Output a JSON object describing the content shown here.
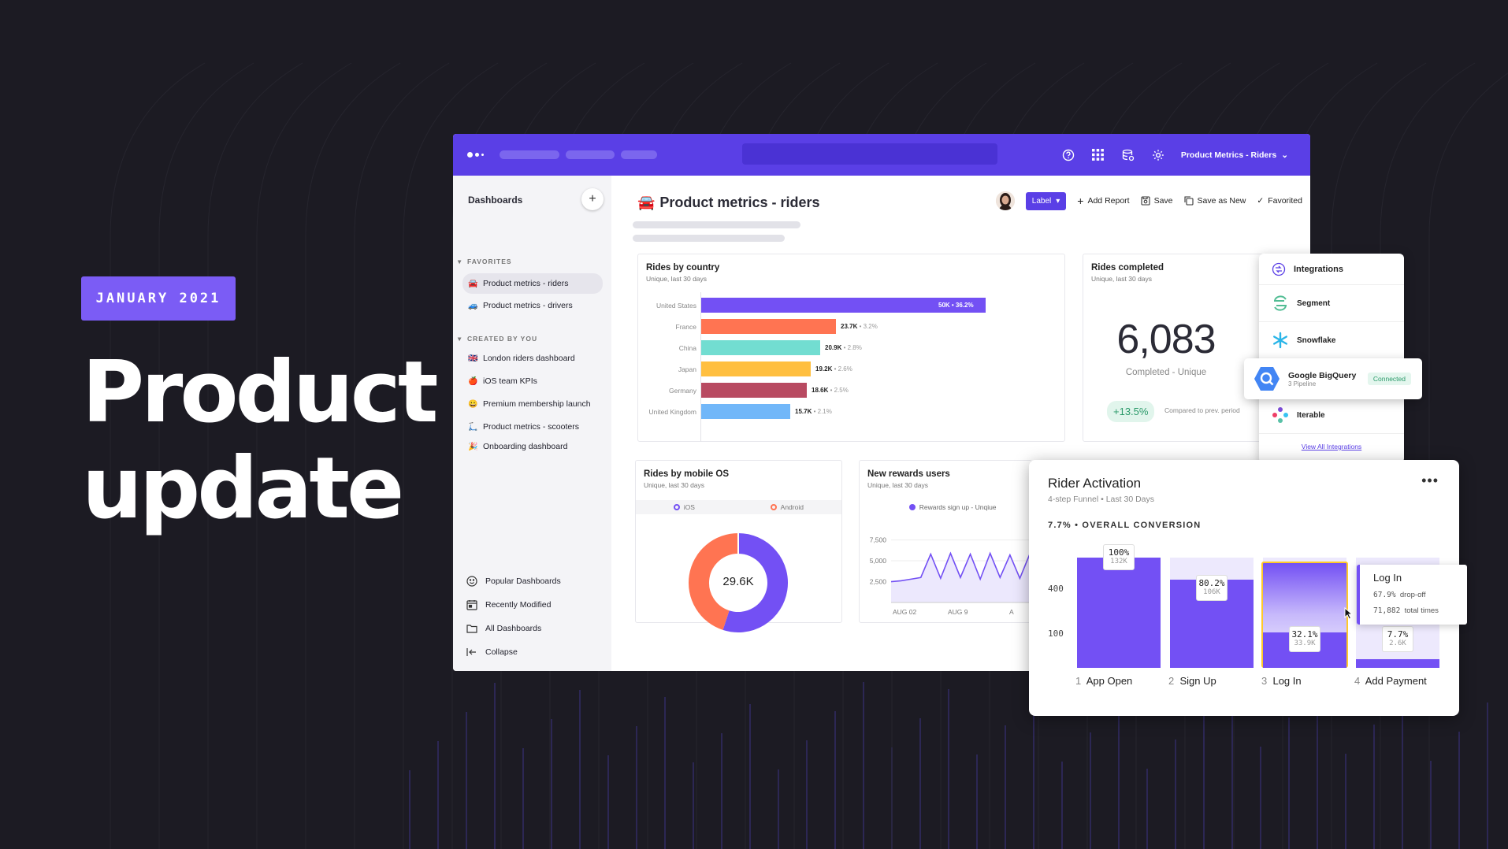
{
  "hero": {
    "date_badge": "JANUARY 2021",
    "title_line1": "Product",
    "title_line2": "update"
  },
  "topbar": {
    "project": "Product Metrics - Riders",
    "icons": [
      "help-icon",
      "apps-grid-icon",
      "data-icon",
      "settings-icon"
    ]
  },
  "sidebar": {
    "title": "Dashboards",
    "favorites_label": "FAVORITES",
    "favorites": [
      {
        "emoji": "🚘",
        "label": "Product metrics - riders"
      },
      {
        "emoji": "🚙",
        "label": "Product metrics - drivers"
      }
    ],
    "created_label": "CREATED BY YOU",
    "created": [
      {
        "emoji": "🇬🇧",
        "label": "London riders dashboard"
      },
      {
        "emoji": "🍎",
        "label": "iOS team KPIs"
      },
      {
        "emoji": "😀",
        "label": "Premium membership launch"
      },
      {
        "emoji": "🛴",
        "label": "Product metrics - scooters"
      },
      {
        "emoji": "🎉",
        "label": "Onboarding dashboard"
      }
    ],
    "footer": [
      "Popular Dashboards",
      "Recently Modified",
      "All Dashboards",
      "Collapse"
    ]
  },
  "page": {
    "emoji": "🚘",
    "title": "Product metrics - riders",
    "label_btn": "Label",
    "add_report": "Add Report",
    "save": "Save",
    "save_as_new": "Save as New",
    "favorited": "Favorited"
  },
  "rides_by_country": {
    "title": "Rides by country",
    "subtitle": "Unique, last 30 days",
    "chart_data": {
      "type": "bar",
      "orientation": "horizontal",
      "categories": [
        "United States",
        "France",
        "China",
        "Japan",
        "Germany",
        "United Kingdom"
      ],
      "values": [
        50000,
        23700,
        20900,
        19200,
        18600,
        15700
      ],
      "value_labels": [
        "50K",
        "23.7K",
        "20.9K",
        "19.2K",
        "18.6K",
        "15.7K"
      ],
      "percent_labels": [
        "36.2%",
        "3.2%",
        "2.8%",
        "2.6%",
        "2.5%",
        "2.1%"
      ],
      "colors": [
        "#7350f4",
        "#ff7452",
        "#72ddd1",
        "#ffbf3f",
        "#b84a61",
        "#71b7f9"
      ]
    }
  },
  "rides_completed": {
    "title": "Rides completed",
    "subtitle": "Unique, last 30 days",
    "value": "6,083",
    "caption": "Completed - Unique",
    "change": "+13.5%",
    "compare": "Compared to prev. period"
  },
  "mobile_os": {
    "title": "Rides by mobile OS",
    "subtitle": "Unique, last 30 days",
    "legend": [
      "iOS",
      "Android"
    ],
    "center": "29.6K",
    "chart_data": {
      "type": "pie",
      "labels": [
        "iOS",
        "Android"
      ],
      "values": [
        55,
        45
      ],
      "colors": [
        "#7350f4",
        "#ff7452"
      ]
    }
  },
  "rewards": {
    "title": "New rewards users",
    "subtitle": "Unique, last 30 days",
    "legend": "Rewards sign up - Unqiue",
    "chart_data": {
      "type": "area",
      "yticks": [
        "7,500",
        "5,000",
        "2,500"
      ],
      "xticks": [
        "AUG 02",
        "AUG 9",
        "A"
      ],
      "ylim": [
        0,
        8500
      ],
      "values": [
        2500,
        2600,
        2800,
        3000,
        5800,
        2900,
        5900,
        3000,
        5800,
        2800,
        5900,
        3000,
        5700,
        2900,
        5800
      ]
    }
  },
  "integrations": {
    "title": "Integrations",
    "items": [
      "Segment",
      "Snowflake",
      "Iterable"
    ],
    "bigquery": {
      "name": "Google BigQuery",
      "sub": "3 Pipeline",
      "status": "Connected"
    },
    "view_all": "View All Integrations"
  },
  "funnel": {
    "title": "Rider Activation",
    "subtitle": "4-step Funnel • Last 30 Days",
    "overall": "7.7% • OVERALL CONVERSION",
    "more_icon": "more-horizontal-icon",
    "yticks": [
      "400",
      "100"
    ],
    "tooltip": {
      "title": "Log In",
      "pct": "67.9%",
      "pct_label": "drop-off",
      "count": "71,882",
      "count_label": "total times"
    },
    "chart_data": {
      "type": "bar",
      "categories": [
        "App Open",
        "Sign Up",
        "Log In",
        "Add Payment"
      ],
      "step_numbers": [
        "1",
        "2",
        "3",
        "4"
      ],
      "values": [
        100,
        80.2,
        32.1,
        7.7
      ],
      "pct_labels": [
        "100%",
        "80.2%",
        "32.1%",
        "7.7%"
      ],
      "count_labels": [
        "132K",
        "106K",
        "33.9K",
        "2.6K"
      ]
    }
  }
}
